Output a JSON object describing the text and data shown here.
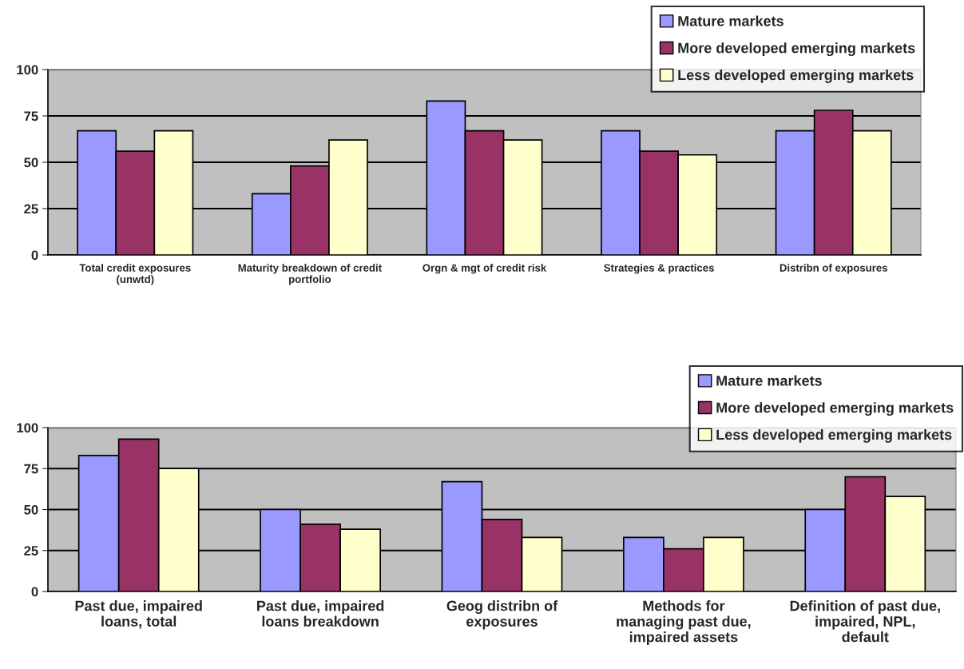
{
  "chart_data": [
    {
      "type": "bar",
      "categories": [
        "Total credit exposures\n(unwtd)",
        "Maturity breakdown of credit\nportfolio",
        "Orgn & mgt of credit risk",
        "Strategies & practices",
        "Distribn of exposures"
      ],
      "series": [
        {
          "name": "Mature markets",
          "color": "#9999ff",
          "values": [
            67,
            33,
            83,
            67,
            67
          ]
        },
        {
          "name": "More developed emerging markets",
          "color": "#993366",
          "values": [
            56,
            48,
            67,
            56,
            78
          ]
        },
        {
          "name": "Less developed emerging markets",
          "color": "#ffffcc",
          "values": [
            67,
            62,
            62,
            54,
            67
          ]
        }
      ],
      "ylim": [
        0,
        100
      ],
      "yticks": [
        0,
        25,
        50,
        75,
        100
      ],
      "grid": "y",
      "legend": "top right"
    },
    {
      "type": "bar",
      "categories": [
        "Past due, impaired\nloans, total",
        "Past due, impaired\nloans breakdown",
        "Geog distribn of\nexposures",
        "Methods for\nmanaging past due,\nimpaired assets",
        "Definition of past due,\nimpaired, NPL,\ndefault"
      ],
      "series": [
        {
          "name": "Mature markets",
          "color": "#9999ff",
          "values": [
            83,
            50,
            67,
            33,
            50
          ]
        },
        {
          "name": "More developed emerging markets",
          "color": "#993366",
          "values": [
            93,
            41,
            44,
            26,
            70
          ]
        },
        {
          "name": "Less developed emerging markets",
          "color": "#ffffcc",
          "values": [
            75,
            38,
            33,
            33,
            58
          ]
        }
      ],
      "ylim": [
        0,
        100
      ],
      "yticks": [
        0,
        25,
        50,
        75,
        100
      ],
      "grid": "y",
      "legend": "top right"
    }
  ]
}
